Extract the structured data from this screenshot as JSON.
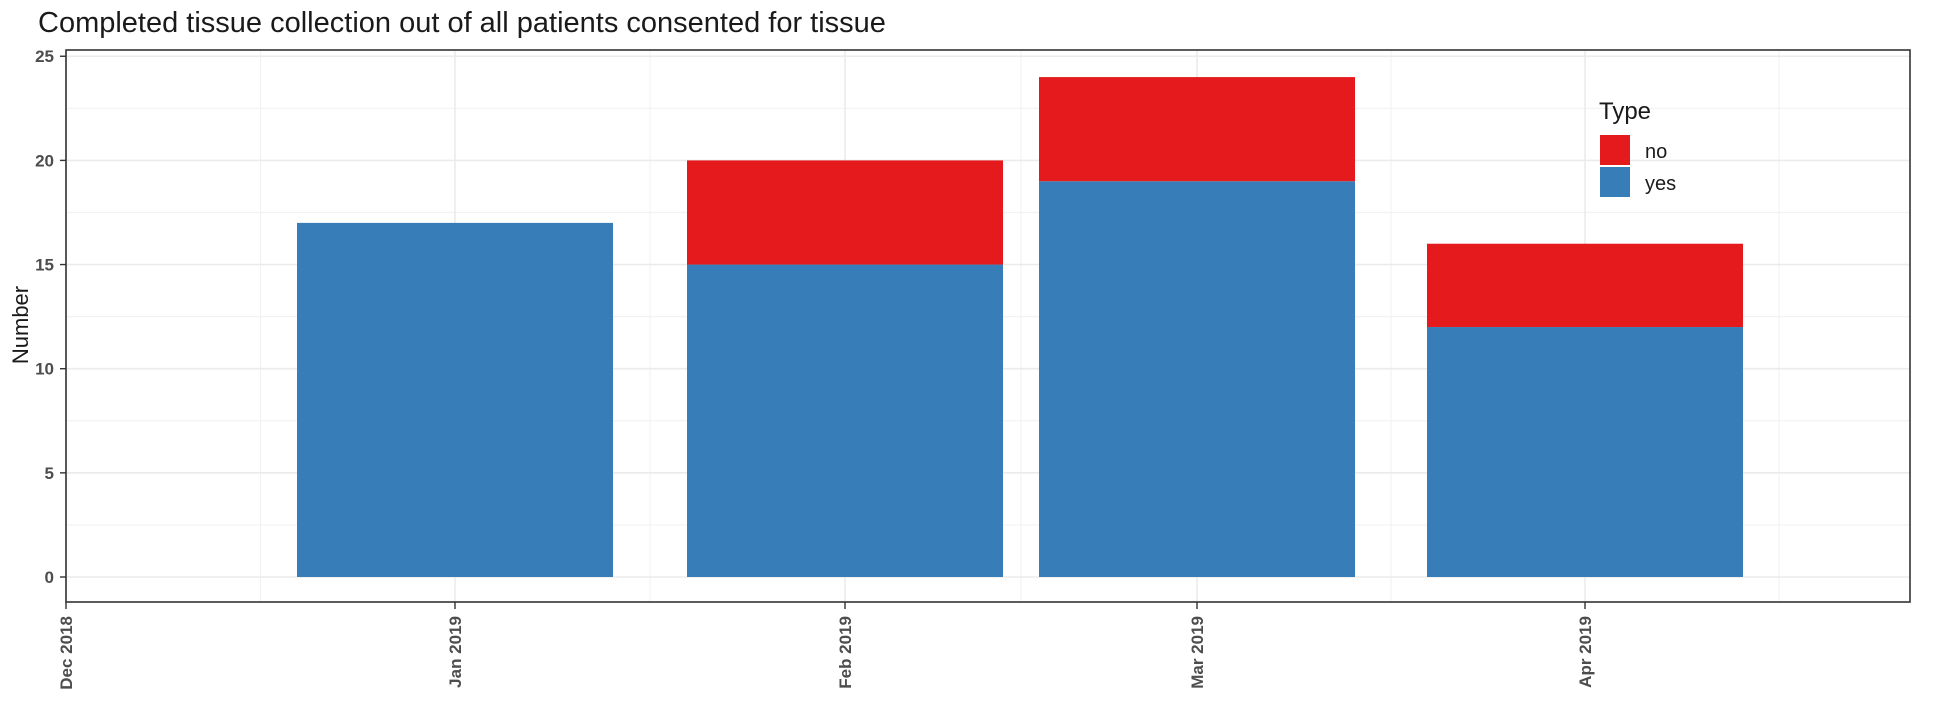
{
  "chart_data": {
    "type": "bar",
    "stacked": true,
    "title": "Completed tissue collection out of all patients consented for tissue",
    "xlabel": "",
    "ylabel": "Number",
    "ylim": [
      -1.2,
      25.3
    ],
    "yticks": [
      0,
      5,
      10,
      15,
      20,
      25
    ],
    "x_tick_labels": [
      "Dec 2018",
      "Jan 2019",
      "Feb 2019",
      "Mar 2019",
      "Apr 2019"
    ],
    "categories": [
      "Jan 2019",
      "Feb 2019",
      "Mar 2019",
      "Apr 2019"
    ],
    "series": [
      {
        "name": "yes",
        "color": "#377EB8",
        "values": [
          17,
          15,
          19,
          12
        ]
      },
      {
        "name": "no",
        "color": "#E41A1C",
        "values": [
          0,
          5,
          5,
          4
        ]
      }
    ],
    "legend": {
      "title": "Type",
      "placement": "top-right",
      "entries": [
        {
          "label": "no",
          "color": "#E41A1C"
        },
        {
          "label": "yes",
          "color": "#377EB8"
        }
      ]
    },
    "grid": true,
    "theme": "bw"
  }
}
